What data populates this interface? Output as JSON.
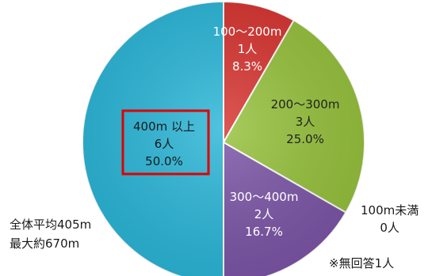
{
  "chart_data": {
    "type": "pie",
    "title": "",
    "slices": [
      {
        "label": "100〜200m",
        "count": "1人",
        "percent": "8.3%",
        "value": 8.3,
        "color": "#d7322e"
      },
      {
        "label": "200〜300m",
        "count": "3人",
        "percent": "25.0%",
        "value": 25.0,
        "color": "#95c13a"
      },
      {
        "label": "300〜400m",
        "count": "2人",
        "percent": "16.7%",
        "value": 16.7,
        "color": "#7b54a6"
      },
      {
        "label": "400m 以上",
        "count": "6人",
        "percent": "50.0%",
        "value": 50.0,
        "color": "#29b6d8"
      }
    ],
    "zero_category": {
      "label": "100m未満",
      "count": "0人"
    },
    "summary": [
      "全体平均405m",
      "最大約670m"
    ],
    "note": "※無回答1人",
    "highlight_color": "#e00000"
  }
}
